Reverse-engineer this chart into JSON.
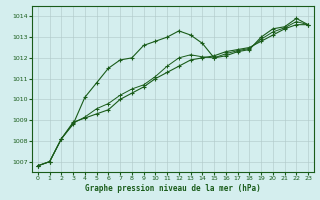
{
  "title": "Graphe pression niveau de la mer (hPa)",
  "background_color": "#d4eeee",
  "plot_bg_color": "#d4eeee",
  "grid_color": "#b0c8c8",
  "line_color": "#1a5c1a",
  "marker_color": "#1a5c1a",
  "xlim": [
    -0.5,
    23.5
  ],
  "ylim": [
    1006.5,
    1014.5
  ],
  "yticks": [
    1007,
    1008,
    1009,
    1010,
    1011,
    1012,
    1013,
    1014
  ],
  "xticks": [
    0,
    1,
    2,
    3,
    4,
    5,
    6,
    7,
    8,
    9,
    10,
    11,
    12,
    13,
    14,
    15,
    16,
    17,
    18,
    19,
    20,
    21,
    22,
    23
  ],
  "series1": [
    1006.8,
    1007.0,
    1008.1,
    1008.8,
    1010.1,
    1010.8,
    1011.5,
    1011.9,
    1012.0,
    1012.6,
    1012.8,
    1013.0,
    1013.3,
    1013.1,
    1012.7,
    1012.0,
    1012.1,
    1012.3,
    1012.4,
    1013.0,
    1013.4,
    1013.5,
    1013.9,
    1013.6
  ],
  "series2": [
    1006.8,
    1007.0,
    1008.1,
    1008.9,
    1009.1,
    1009.3,
    1009.5,
    1010.0,
    1010.3,
    1010.6,
    1011.0,
    1011.3,
    1011.6,
    1011.9,
    1012.0,
    1012.1,
    1012.3,
    1012.4,
    1012.5,
    1012.8,
    1013.1,
    1013.4,
    1013.6,
    1013.6
  ],
  "series3": [
    1006.8,
    1007.0,
    1008.1,
    1008.85,
    1009.15,
    1009.55,
    1009.8,
    1010.2,
    1010.5,
    1010.7,
    1011.1,
    1011.6,
    1012.0,
    1012.15,
    1012.05,
    1012.0,
    1012.2,
    1012.35,
    1012.45,
    1012.9,
    1013.25,
    1013.45,
    1013.75,
    1013.6
  ],
  "title_fontsize": 5.5,
  "tick_fontsize": 4.5
}
